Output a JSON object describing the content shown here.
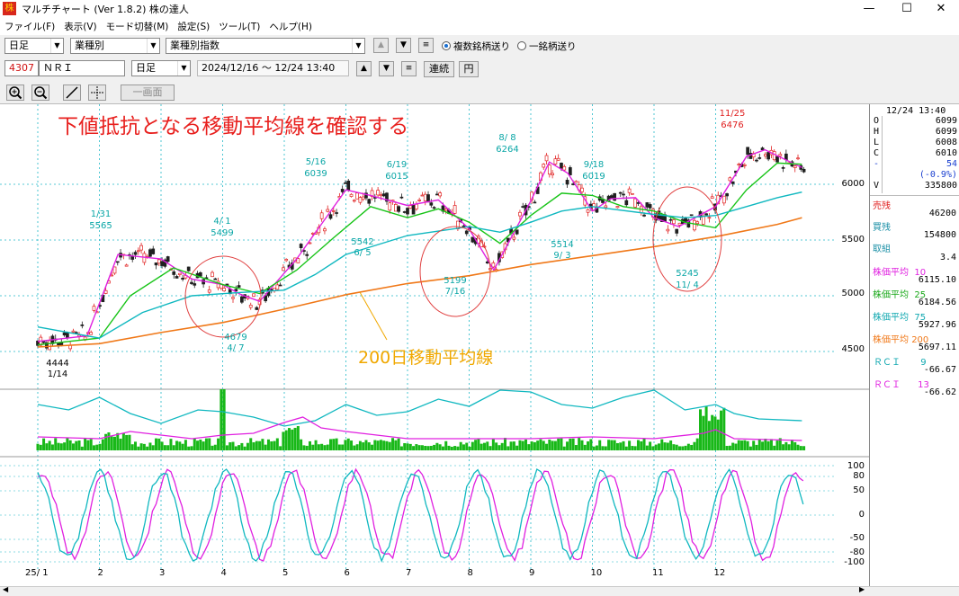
{
  "window": {
    "title": "マルチチャート (Ver 1.8.2) 株の達人",
    "minimize": "—",
    "maximize": "☐",
    "close": "✕"
  },
  "menu": [
    "ファイル(F)",
    "表示(V)",
    "モード切替(M)",
    "設定(S)",
    "ツール(T)",
    "ヘルプ(H)"
  ],
  "toolbar1": {
    "period": "日足",
    "category": "業種別",
    "index": "業種別指数",
    "multi_label": "複数銘柄送り",
    "single_label": "一銘柄送り",
    "list_icon": "≡"
  },
  "toolbar2": {
    "code": "4307",
    "name": "ＮＲＩ",
    "period": "日足",
    "date_range": "2024/12/16 〜 12/24 13:40",
    "renzoku": "連続",
    "yen": "円",
    "list_icon": "≡"
  },
  "toolbar3": {
    "single_screen": "一画面"
  },
  "annotations": {
    "headline": "下値抵抗となる移動平均線を確認する",
    "ma200_label": "200日移動平均線"
  },
  "colors": {
    "headline": "#e8201e",
    "ma200_label": "#f0a800",
    "ma10": "#e020e0",
    "ma25": "#18c418",
    "ma75": "#10b8c0",
    "ma200": "#f07818",
    "candle_up": "#e02020",
    "candle_down": "#202020",
    "volume": "#18b818",
    "circle": "#e04040"
  },
  "price_ticks": [
    "6000",
    "5500",
    "5000",
    "4500"
  ],
  "rci_ticks": [
    "100",
    "80",
    "50",
    "0",
    "-50",
    "-80",
    "-100"
  ],
  "x_labels": [
    "25/ 1",
    "2",
    "3",
    "4",
    "5",
    "6",
    "7",
    "8",
    "9",
    "10",
    "11",
    "12"
  ],
  "peak_labels": [
    {
      "date": "1/31",
      "price": "5565"
    },
    {
      "date": "4/ 1",
      "price": "5499"
    },
    {
      "date": "5/16",
      "price": "6039"
    },
    {
      "date": "6/19",
      "price": "6015"
    },
    {
      "date": "8/ 8",
      "price": "6264"
    },
    {
      "date": "9/18",
      "price": "6019"
    },
    {
      "date": "11/25",
      "price": "6476"
    }
  ],
  "trough_labels": [
    {
      "price": "4444",
      "date": "1/14"
    },
    {
      "price": "4679",
      "date": "4/ 7"
    },
    {
      "price": "5542",
      "date": "6/ 5"
    },
    {
      "price": "5199",
      "date": "7/16"
    },
    {
      "price": "5514",
      "date": "9/ 3"
    },
    {
      "price": "5245",
      "date": "11/ 4"
    }
  ],
  "panel": {
    "date": "12/24 13:40",
    "ohlc": [
      {
        "k": "O",
        "v": "6099"
      },
      {
        "k": "H",
        "v": "6099"
      },
      {
        "k": "L",
        "v": "6008"
      },
      {
        "k": "C",
        "v": "6010"
      },
      {
        "k": "-",
        "v": "54"
      },
      {
        "k": "",
        "v": "(-0.9%)"
      },
      {
        "k": "V",
        "v": "335800"
      }
    ],
    "sell_label": "売残",
    "sell_value": "46200",
    "buy_label": "買残",
    "buy_value": "154800",
    "ratio_label": "取組",
    "ratio_value": "3.4",
    "ma": [
      {
        "label": "株価平均",
        "period": "10",
        "value": "6115.10"
      },
      {
        "label": "株価平均",
        "period": "25",
        "value": "6184.56"
      },
      {
        "label": "株価平均",
        "period": "75",
        "value": "5927.96"
      },
      {
        "label": "株価平均",
        "period": "200",
        "value": "5697.11"
      }
    ],
    "rci": [
      {
        "label": "ＲＣＩ",
        "period": "9",
        "value": "-66.67"
      },
      {
        "label": "ＲＣＩ",
        "period": "13",
        "value": "-66.62"
      }
    ]
  },
  "chart_data": {
    "type": "line",
    "title": "下値抵抗となる移動平均線を確認する",
    "ylim": [
      4200,
      6700
    ],
    "x_months": [
      "25/ 1",
      "2",
      "3",
      "4",
      "5",
      "6",
      "7",
      "8",
      "9",
      "10",
      "11",
      "12"
    ],
    "series": [
      {
        "name": "株価平均 10",
        "color": "#e020e0",
        "points": [
          [
            0,
            4590
          ],
          [
            0.8,
            4640
          ],
          [
            1.3,
            5370
          ],
          [
            2,
            5330
          ],
          [
            2.5,
            5150
          ],
          [
            3,
            5100
          ],
          [
            3.3,
            5010
          ],
          [
            3.6,
            4950
          ],
          [
            4.2,
            5330
          ],
          [
            4.6,
            5640
          ],
          [
            5,
            5950
          ],
          [
            5.4,
            5900
          ],
          [
            6,
            5810
          ],
          [
            6.5,
            5860
          ],
          [
            7,
            5600
          ],
          [
            7.4,
            5230
          ],
          [
            8,
            5850
          ],
          [
            8.3,
            6200
          ],
          [
            8.6,
            6100
          ],
          [
            9,
            5760
          ],
          [
            9.3,
            5870
          ],
          [
            9.7,
            5880
          ],
          [
            10,
            5700
          ],
          [
            10.4,
            5620
          ],
          [
            11,
            5800
          ],
          [
            11.5,
            6250
          ],
          [
            11.8,
            6310
          ],
          [
            12.4,
            6150
          ]
        ]
      },
      {
        "name": "株価平均 25",
        "color": "#18c418",
        "points": [
          [
            0,
            4560
          ],
          [
            1,
            4620
          ],
          [
            1.5,
            5000
          ],
          [
            2.2,
            5250
          ],
          [
            3,
            5100
          ],
          [
            3.6,
            5020
          ],
          [
            4.2,
            5230
          ],
          [
            4.8,
            5520
          ],
          [
            5.4,
            5800
          ],
          [
            6,
            5700
          ],
          [
            6.5,
            5780
          ],
          [
            7,
            5660
          ],
          [
            7.5,
            5470
          ],
          [
            8,
            5720
          ],
          [
            8.5,
            5920
          ],
          [
            9,
            5900
          ],
          [
            9.5,
            5800
          ],
          [
            10,
            5760
          ],
          [
            10.5,
            5660
          ],
          [
            11,
            5610
          ],
          [
            11.5,
            5950
          ],
          [
            12,
            6190
          ],
          [
            12.4,
            6180
          ]
        ]
      },
      {
        "name": "株価平均 75",
        "color": "#10b8c0",
        "points": [
          [
            0,
            4720
          ],
          [
            1,
            4620
          ],
          [
            1.7,
            4850
          ],
          [
            2.5,
            5000
          ],
          [
            3.3,
            5030
          ],
          [
            4,
            5050
          ],
          [
            4.5,
            5190
          ],
          [
            5,
            5370
          ],
          [
            6,
            5540
          ],
          [
            7,
            5620
          ],
          [
            7.5,
            5570
          ],
          [
            8,
            5660
          ],
          [
            8.5,
            5760
          ],
          [
            9,
            5800
          ],
          [
            10,
            5730
          ],
          [
            10.5,
            5700
          ],
          [
            11,
            5720
          ],
          [
            11.5,
            5800
          ],
          [
            12,
            5880
          ],
          [
            12.4,
            5930
          ]
        ]
      },
      {
        "name": "株価平均 200",
        "color": "#f07818",
        "points": [
          [
            0,
            4540
          ],
          [
            1,
            4570
          ],
          [
            2,
            4670
          ],
          [
            3,
            4760
          ],
          [
            4,
            4880
          ],
          [
            5,
            5010
          ],
          [
            6,
            5110
          ],
          [
            7,
            5180
          ],
          [
            8,
            5280
          ],
          [
            9,
            5360
          ],
          [
            10,
            5440
          ],
          [
            11,
            5530
          ],
          [
            12,
            5640
          ],
          [
            12.4,
            5700
          ]
        ]
      }
    ]
  }
}
